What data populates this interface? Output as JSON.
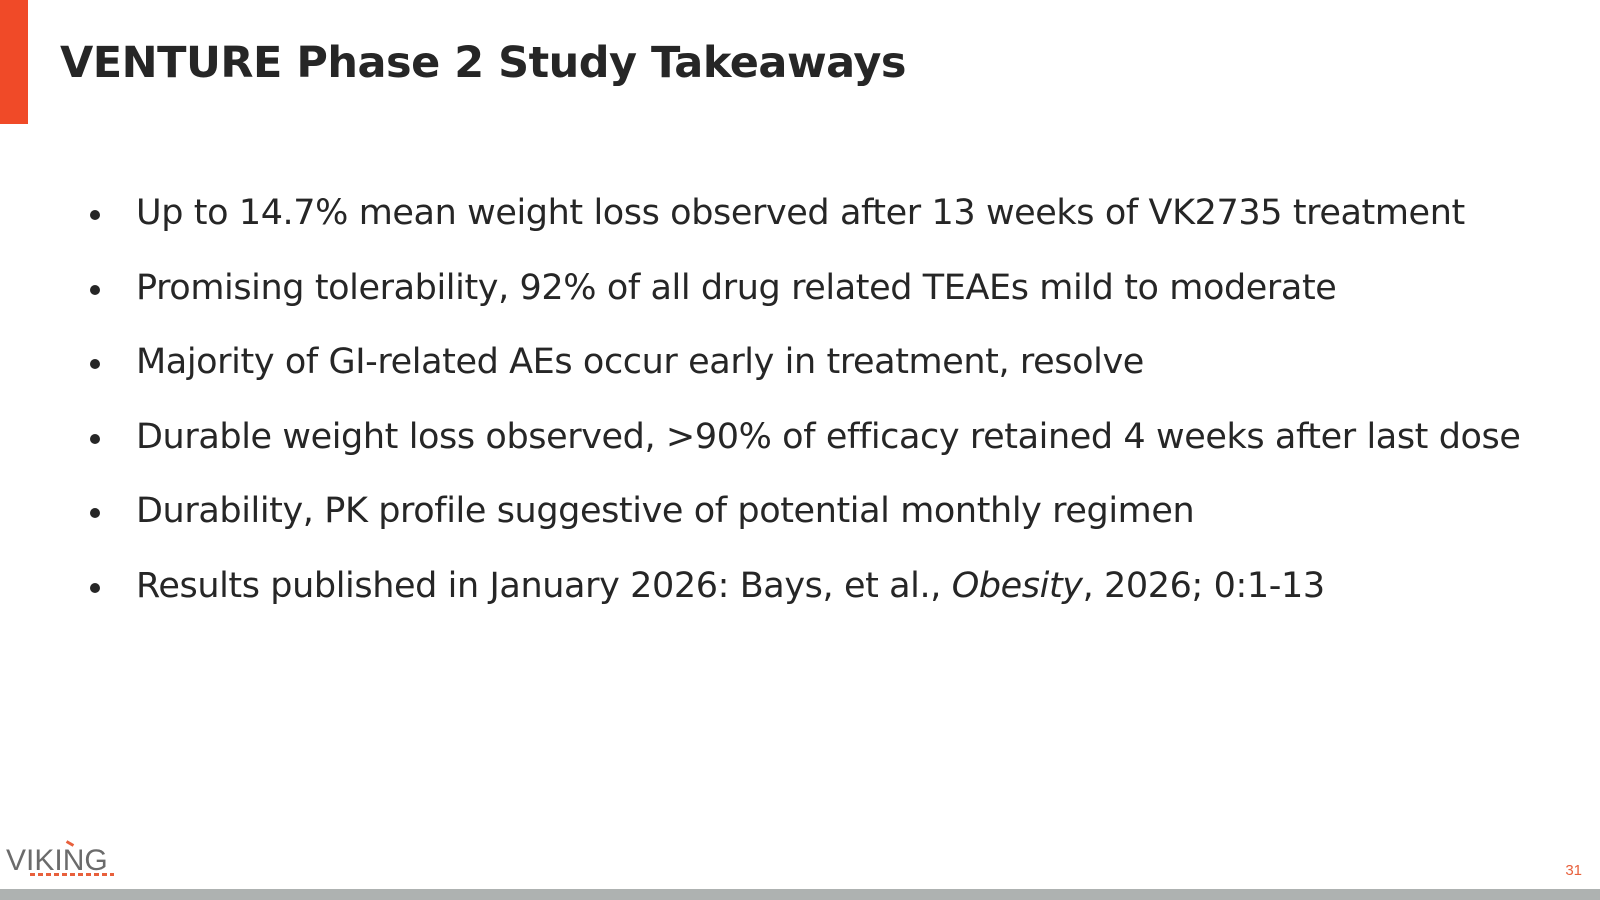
{
  "slide": {
    "title": "VENTURE Phase 2 Study Takeaways",
    "bullets": [
      {
        "text": "Up to 14.7% mean weight loss observed after 13 weeks of VK2735 treatment"
      },
      {
        "text": "Promising tolerability, 92% of all drug related TEAEs mild to moderate"
      },
      {
        "text": "Majority of GI-related AEs occur early in treatment, resolve"
      },
      {
        "text": "Durable weight loss observed, >90% of efficacy retained 4 weeks after last dose"
      },
      {
        "text": "Durability, PK profile suggestive of potential monthly regimen"
      },
      {
        "prefix": "Results published in January 2026: Bays, et al., ",
        "italic": "Obesity",
        "suffix": ", 2026; 0:1-13"
      }
    ],
    "page_number": "31"
  },
  "footer": {
    "logo_text": "VIKING",
    "logo_icon": "viking-logo"
  },
  "colors": {
    "accent": "#f04a28",
    "footer_bar": "#aeb2b1",
    "text": "#262626"
  }
}
